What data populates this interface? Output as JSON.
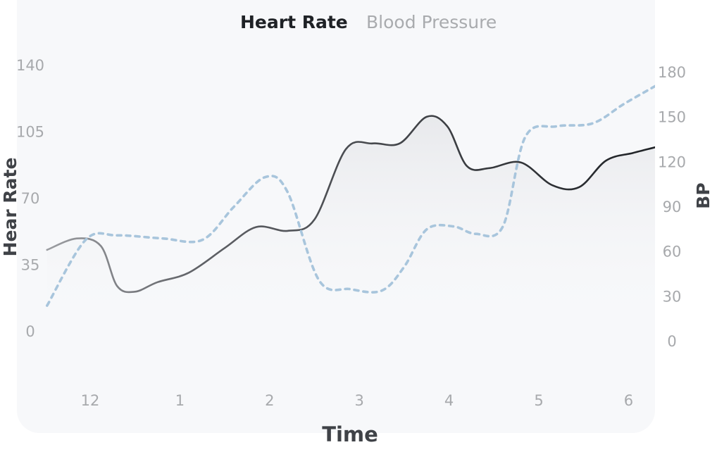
{
  "tabs": [
    {
      "label": "Heart Rate",
      "active": true
    },
    {
      "label": "Blood Pressure",
      "active": false
    }
  ],
  "colors": {
    "card_bg": "#f7f8fa",
    "heart_rate_line": "#3b3d42",
    "bp_line": "#a8c5dc",
    "tick_text": "#a7a9ac",
    "axis_title": "#3f4247",
    "active_tab": "#1f2226",
    "inactive_tab": "#a9abae"
  },
  "chart_data": {
    "type": "line",
    "xlabel": "Time",
    "ylabel": "Hear Rate",
    "y2label": "BP",
    "x_ticks": [
      "12",
      "1",
      "2",
      "3",
      "4",
      "5",
      "6"
    ],
    "y_ticks": [
      0,
      35,
      70,
      105,
      140
    ],
    "y2_ticks": [
      0,
      30,
      60,
      90,
      120,
      150,
      180
    ],
    "ylim": [
      0,
      140
    ],
    "y2lim": [
      0,
      180
    ],
    "grid": false,
    "series": [
      {
        "name": "Heart Rate",
        "axis": "left",
        "style": "solid",
        "area_fill": true,
        "points": [
          [
            -0.48,
            43
          ],
          [
            -0.15,
            49
          ],
          [
            0.12,
            45
          ],
          [
            0.3,
            24
          ],
          [
            0.5,
            21
          ],
          [
            0.75,
            26
          ],
          [
            1.1,
            31
          ],
          [
            1.5,
            44
          ],
          [
            1.85,
            55
          ],
          [
            2.2,
            53
          ],
          [
            2.5,
            59
          ],
          [
            2.85,
            96
          ],
          [
            3.15,
            99
          ],
          [
            3.45,
            99
          ],
          [
            3.75,
            113
          ],
          [
            3.98,
            108
          ],
          [
            4.2,
            87
          ],
          [
            4.45,
            86
          ],
          [
            4.8,
            89
          ],
          [
            5.15,
            77
          ],
          [
            5.45,
            76
          ],
          [
            5.75,
            90
          ],
          [
            6.05,
            94
          ],
          [
            6.3,
            97
          ]
        ]
      },
      {
        "name": "Blood Pressure",
        "axis": "right",
        "style": "dashed",
        "points": [
          [
            -0.48,
            24
          ],
          [
            -0.05,
            68
          ],
          [
            0.3,
            71
          ],
          [
            0.8,
            69
          ],
          [
            1.25,
            68
          ],
          [
            1.6,
            90
          ],
          [
            1.95,
            110
          ],
          [
            2.2,
            100
          ],
          [
            2.55,
            41
          ],
          [
            2.9,
            35
          ],
          [
            3.25,
            34
          ],
          [
            3.5,
            50
          ],
          [
            3.75,
            75
          ],
          [
            4.05,
            77
          ],
          [
            4.3,
            72
          ],
          [
            4.6,
            77
          ],
          [
            4.85,
            137
          ],
          [
            5.2,
            144
          ],
          [
            5.6,
            146
          ],
          [
            5.95,
            159
          ],
          [
            6.3,
            171
          ]
        ]
      }
    ]
  }
}
